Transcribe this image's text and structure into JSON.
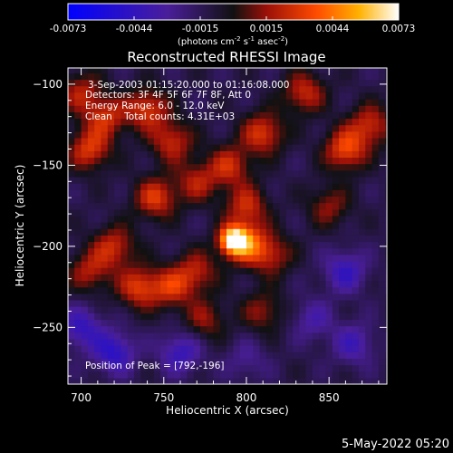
{
  "colorbar": {
    "ticks": [
      "-0.0073",
      "-0.0044",
      "-0.0015",
      "0.0015",
      "0.0044",
      "0.0073"
    ],
    "units_label": "(photons cm",
    "units_sup1": "-2",
    "units_mid": " s",
    "units_sup2": "-1",
    "units_mid2": " asec",
    "units_sup3": "-2",
    "units_end": ")",
    "range": [
      -0.0073,
      0.0073
    ]
  },
  "chart_data": {
    "type": "heatmap",
    "title": "Reconstructed RHESSI Image",
    "xlabel": "Heliocentric X (arcsec)",
    "ylabel": "Heliocentric Y (arcsec)",
    "xlim": [
      692,
      885
    ],
    "ylim": [
      -285,
      -90
    ],
    "xticks": [
      700,
      750,
      800,
      850
    ],
    "yticks": [
      -100,
      -150,
      -200,
      -250
    ],
    "xtick_labels": [
      "700",
      "750",
      "800",
      "850"
    ],
    "ytick_labels": [
      "−100",
      "−150",
      "−200",
      "−250"
    ],
    "annotations": [
      "3-Sep-2003 01:15:20.000 to 01:16:08.000",
      "Detectors: 3F 4F 5F 6F 7F 8F, Att 0",
      "Energy Range: 6.0 - 12.0 keV",
      "Clean    Total counts: 4.31E+03"
    ],
    "peak_label": "Position of Peak = [792,-196]",
    "peak": [
      792,
      -196
    ],
    "sources": [
      {
        "x": 792,
        "y": -196,
        "v": 0.0073
      },
      {
        "x": 800,
        "y": -198,
        "v": 0.0045
      },
      {
        "x": 720,
        "y": -200,
        "v": 0.0035
      },
      {
        "x": 705,
        "y": -140,
        "v": 0.004
      },
      {
        "x": 715,
        "y": -120,
        "v": 0.0035
      },
      {
        "x": 740,
        "y": -115,
        "v": 0.004
      },
      {
        "x": 755,
        "y": -135,
        "v": 0.0035
      },
      {
        "x": 745,
        "y": -170,
        "v": 0.004
      },
      {
        "x": 770,
        "y": -160,
        "v": 0.003
      },
      {
        "x": 790,
        "y": -150,
        "v": 0.0035
      },
      {
        "x": 810,
        "y": -130,
        "v": 0.004
      },
      {
        "x": 835,
        "y": -105,
        "v": 0.0035
      },
      {
        "x": 860,
        "y": -140,
        "v": 0.0045
      },
      {
        "x": 875,
        "y": -125,
        "v": 0.0035
      },
      {
        "x": 850,
        "y": -175,
        "v": 0.0025
      },
      {
        "x": 800,
        "y": -175,
        "v": 0.0035
      },
      {
        "x": 815,
        "y": -205,
        "v": 0.003
      },
      {
        "x": 770,
        "y": -215,
        "v": 0.003
      },
      {
        "x": 755,
        "y": -225,
        "v": 0.0035
      },
      {
        "x": 735,
        "y": -225,
        "v": 0.004
      },
      {
        "x": 705,
        "y": -215,
        "v": 0.003
      },
      {
        "x": 700,
        "y": -105,
        "v": 0.003
      },
      {
        "x": 775,
        "y": -245,
        "v": 0.0025
      },
      {
        "x": 810,
        "y": -240,
        "v": 0.0025
      },
      {
        "x": 860,
        "y": -215,
        "v": -0.003
      },
      {
        "x": 865,
        "y": -260,
        "v": -0.0025
      },
      {
        "x": 720,
        "y": -265,
        "v": -0.0035
      },
      {
        "x": 760,
        "y": -265,
        "v": -0.003
      },
      {
        "x": 700,
        "y": -250,
        "v": -0.003
      },
      {
        "x": 800,
        "y": -270,
        "v": -0.0015
      },
      {
        "x": 840,
        "y": -245,
        "v": -0.002
      }
    ]
  },
  "footer": {
    "date": "5-May-2022 05:20"
  }
}
